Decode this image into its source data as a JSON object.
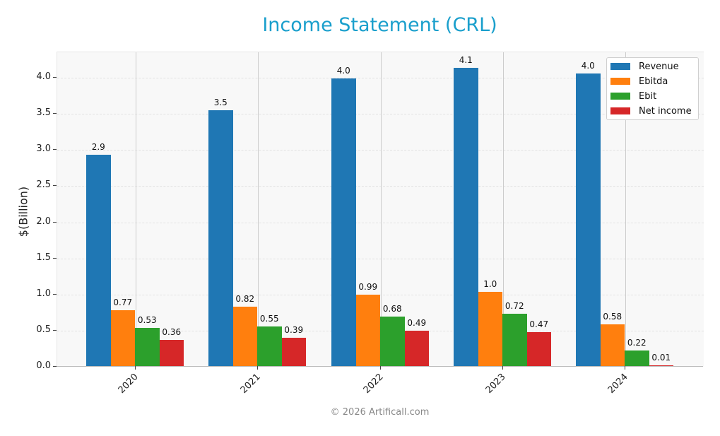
{
  "chart_data": {
    "type": "bar",
    "title": "Income Statement (CRL)",
    "xlabel": "",
    "ylabel": "$(Billion)",
    "categories": [
      "2020",
      "2021",
      "2022",
      "2023",
      "2024"
    ],
    "series": [
      {
        "name": "Revenue",
        "color": "#1f77b4",
        "values": [
          2.92,
          3.54,
          3.98,
          4.13,
          4.05
        ],
        "labels": [
          "2.9",
          "3.5",
          "4.0",
          "4.1",
          "4.0"
        ]
      },
      {
        "name": "Ebitda",
        "color": "#ff7f0e",
        "values": [
          0.77,
          0.82,
          0.99,
          1.03,
          0.58
        ],
        "labels": [
          "0.77",
          "0.82",
          "0.99",
          "1.0",
          "0.58"
        ]
      },
      {
        "name": "Ebit",
        "color": "#2ca02c",
        "values": [
          0.53,
          0.55,
          0.68,
          0.72,
          0.22
        ],
        "labels": [
          "0.53",
          "0.55",
          "0.68",
          "0.72",
          "0.22"
        ]
      },
      {
        "name": "Net income",
        "color": "#d62728",
        "values": [
          0.36,
          0.39,
          0.49,
          0.47,
          0.01
        ],
        "labels": [
          "0.36",
          "0.39",
          "0.49",
          "0.47",
          "0.01"
        ]
      }
    ],
    "ylim": [
      0,
      4.35
    ],
    "yticks": [
      "0.0",
      "0.5",
      "1.0",
      "1.5",
      "2.0",
      "2.5",
      "3.0",
      "3.5",
      "4.0"
    ],
    "grid": true,
    "legend_position": "upper right"
  },
  "footer": "© 2026 Artificall.com"
}
